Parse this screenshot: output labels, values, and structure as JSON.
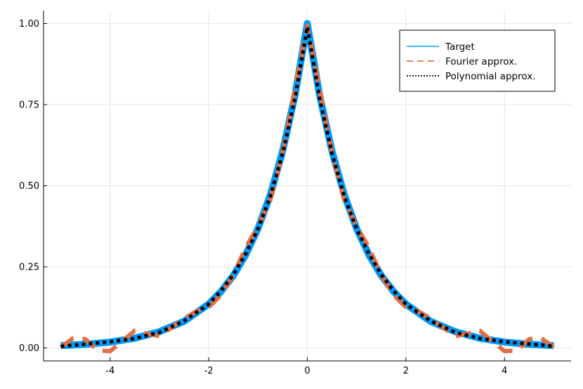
{
  "chart_data": {
    "type": "line",
    "title": "",
    "xlabel": "",
    "ylabel": "",
    "xlim": [
      -5.35,
      5.35
    ],
    "ylim": [
      -0.04,
      1.04
    ],
    "xticks": [
      -4,
      -2,
      0,
      2,
      4
    ],
    "xtick_labels": [
      "-4",
      "-2",
      "0",
      "2",
      "4"
    ],
    "yticks": [
      0.0,
      0.25,
      0.5,
      0.75,
      1.0
    ],
    "ytick_labels": [
      "0.00",
      "0.25",
      "0.50",
      "0.75",
      "1.00"
    ],
    "grid": true,
    "legend_position": "top-right",
    "series": [
      {
        "name": "Target",
        "style": "solid",
        "color": "#009AFA",
        "x": [
          -5,
          -4.5,
          -4,
          -3.5,
          -3,
          -2.5,
          -2,
          -1.75,
          -1.5,
          -1.25,
          -1,
          -0.75,
          -0.5,
          -0.25,
          0,
          0.25,
          0.5,
          0.75,
          1,
          1.25,
          1.5,
          1.75,
          2,
          2.5,
          3,
          3.5,
          4,
          4.5,
          5
        ],
        "y": [
          0.007,
          0.011,
          0.018,
          0.03,
          0.05,
          0.082,
          0.135,
          0.174,
          0.223,
          0.287,
          0.368,
          0.472,
          0.607,
          0.779,
          1.0,
          0.779,
          0.607,
          0.472,
          0.368,
          0.287,
          0.223,
          0.174,
          0.135,
          0.082,
          0.05,
          0.03,
          0.018,
          0.011,
          0.007
        ]
      },
      {
        "name": "Fourier approx.",
        "style": "dashed",
        "color": "#E26F46",
        "x": [
          -5,
          -4.75,
          -4.5,
          -4.25,
          -4,
          -3.75,
          -3.5,
          -3.25,
          -3,
          -2.75,
          -2.5,
          -2.25,
          -2,
          -1.75,
          -1.5,
          -1.25,
          -1,
          -0.75,
          -0.5,
          -0.25,
          0,
          0.25,
          0.5,
          0.75,
          1,
          1.25,
          1.5,
          1.75,
          2,
          2.25,
          2.5,
          2.75,
          3,
          3.25,
          3.5,
          3.75,
          4,
          4.25,
          4.5,
          4.75,
          5
        ],
        "y": [
          0.002,
          0.03,
          0.027,
          -0.008,
          -0.01,
          0.021,
          0.053,
          0.044,
          0.036,
          0.063,
          0.091,
          0.113,
          0.125,
          0.163,
          0.225,
          0.31,
          0.375,
          0.455,
          0.6,
          0.8,
          0.993,
          0.8,
          0.6,
          0.455,
          0.375,
          0.31,
          0.225,
          0.163,
          0.125,
          0.113,
          0.091,
          0.063,
          0.036,
          0.044,
          0.053,
          0.021,
          -0.01,
          -0.008,
          0.027,
          0.03,
          0.002
        ]
      },
      {
        "name": "Polynomial approx.",
        "style": "dotted",
        "color": "#000000",
        "x": [
          -5,
          -4.5,
          -4,
          -3.5,
          -3,
          -2.5,
          -2,
          -1.75,
          -1.5,
          -1.25,
          -1,
          -0.75,
          -0.5,
          -0.25,
          0,
          0.25,
          0.5,
          0.75,
          1,
          1.25,
          1.5,
          1.75,
          2,
          2.5,
          3,
          3.5,
          4,
          4.5,
          5
        ],
        "y": [
          0.005,
          0.012,
          0.019,
          0.029,
          0.048,
          0.083,
          0.135,
          0.176,
          0.226,
          0.29,
          0.367,
          0.468,
          0.6,
          0.77,
          0.99,
          0.77,
          0.6,
          0.468,
          0.367,
          0.29,
          0.226,
          0.176,
          0.135,
          0.083,
          0.048,
          0.029,
          0.019,
          0.012,
          0.005
        ]
      }
    ]
  }
}
